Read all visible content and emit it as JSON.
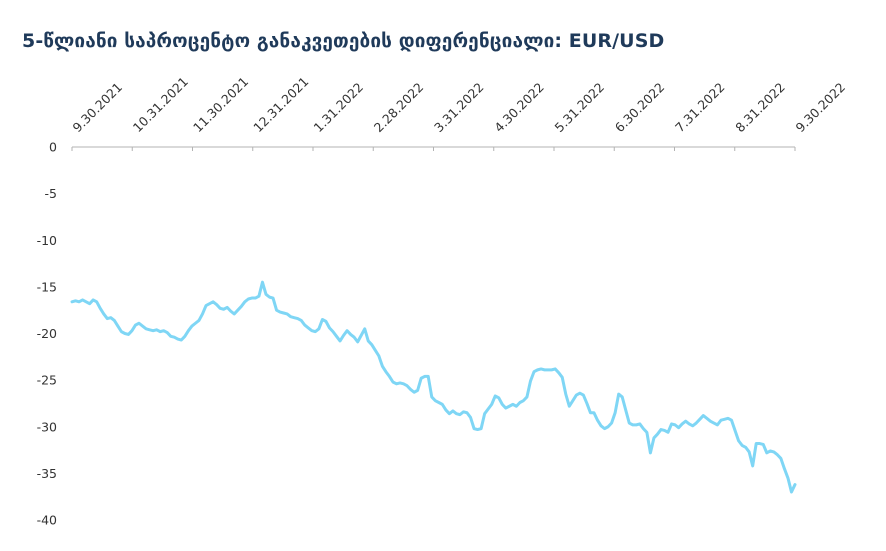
{
  "chart_data": {
    "type": "line",
    "title": "5-წლიანი საპროცენტო განაკვეთების დიფერენციალი: EUR/USD",
    "xlabel": "",
    "ylabel": "",
    "x_ticks": [
      "9.30.2021",
      "10.31.2021",
      "11.30.2021",
      "12.31.2021",
      "1.31.2022",
      "2.28.2022",
      "3.31.2022",
      "4.30.2022",
      "5.31.2022",
      "6.30.2022",
      "7.31.2022",
      "8.31.2022",
      "9.30.2022"
    ],
    "y_ticks": [
      0,
      -5,
      -10,
      -15,
      -20,
      -25,
      -30,
      -35,
      -40
    ],
    "ylim": [
      -40,
      0
    ],
    "x_axis_position": "top",
    "grid": false,
    "color": "#7fd6f5",
    "series": [
      {
        "values": [
          -16.6,
          -16.5,
          -16.6,
          -16.4,
          -16.6,
          -16.8,
          -16.4,
          -16.6,
          -17.3,
          -17.9,
          -18.4,
          -18.3,
          -18.6,
          -19.2,
          -19.8,
          -20.0,
          -20.1,
          -19.7,
          -19.1,
          -18.9,
          -19.2,
          -19.5,
          -19.6,
          -19.7,
          -19.6,
          -19.8,
          -19.7,
          -19.9,
          -20.3,
          -20.4,
          -20.6,
          -20.7,
          -20.3,
          -19.7,
          -19.2,
          -18.9,
          -18.6,
          -17.9,
          -17.0,
          -16.8,
          -16.6,
          -16.9,
          -17.3,
          -17.4,
          -17.2,
          -17.6,
          -17.9,
          -17.5,
          -17.1,
          -16.6,
          -16.3,
          -16.2,
          -16.2,
          -16.0,
          -14.5,
          -15.8,
          -16.1,
          -16.2,
          -17.5,
          -17.7,
          -17.8,
          -17.9,
          -18.2,
          -18.3,
          -18.4,
          -18.6,
          -19.1,
          -19.4,
          -19.7,
          -19.8,
          -19.5,
          -18.5,
          -18.7,
          -19.4,
          -19.8,
          -20.3,
          -20.8,
          -20.2,
          -19.7,
          -20.1,
          -20.4,
          -20.9,
          -20.2,
          -19.5,
          -20.8,
          -21.2,
          -21.8,
          -22.4,
          -23.5,
          -24.1,
          -24.6,
          -25.2,
          -25.4,
          -25.3,
          -25.4,
          -25.6,
          -26.0,
          -26.3,
          -26.1,
          -24.8,
          -24.6,
          -24.6,
          -26.8,
          -27.2,
          -27.4,
          -27.6,
          -28.2,
          -28.6,
          -28.3,
          -28.6,
          -28.7,
          -28.4,
          -28.5,
          -29.0,
          -30.2,
          -30.3,
          -30.2,
          -28.6,
          -28.1,
          -27.6,
          -26.7,
          -26.9,
          -27.6,
          -28.0,
          -27.8,
          -27.6,
          -27.8,
          -27.4,
          -27.2,
          -26.8,
          -25.1,
          -24.1,
          -23.9,
          -23.8,
          -23.9,
          -23.9,
          -23.9,
          -23.8,
          -24.2,
          -24.7,
          -26.5,
          -27.8,
          -27.2,
          -26.6,
          -26.4,
          -26.6,
          -27.5,
          -28.5,
          -28.5,
          -29.3,
          -29.9,
          -30.2,
          -30.0,
          -29.6,
          -28.5,
          -26.5,
          -26.8,
          -28.2,
          -29.6,
          -29.8,
          -29.8,
          -29.7,
          -30.2,
          -30.6,
          -32.8,
          -31.2,
          -30.8,
          -30.3,
          -30.4,
          -30.6,
          -29.7,
          -29.8,
          -30.1,
          -29.7,
          -29.4,
          -29.7,
          -29.9,
          -29.6,
          -29.2,
          -28.8,
          -29.1,
          -29.4,
          -29.6,
          -29.8,
          -29.3,
          -29.2,
          -29.1,
          -29.3,
          -30.4,
          -31.5,
          -32.0,
          -32.2,
          -32.7,
          -34.2,
          -31.8,
          -31.8,
          -31.9,
          -32.8,
          -32.6,
          -32.7,
          -33.0,
          -33.4,
          -34.5,
          -35.5,
          -37.0,
          -36.2
        ]
      }
    ]
  }
}
